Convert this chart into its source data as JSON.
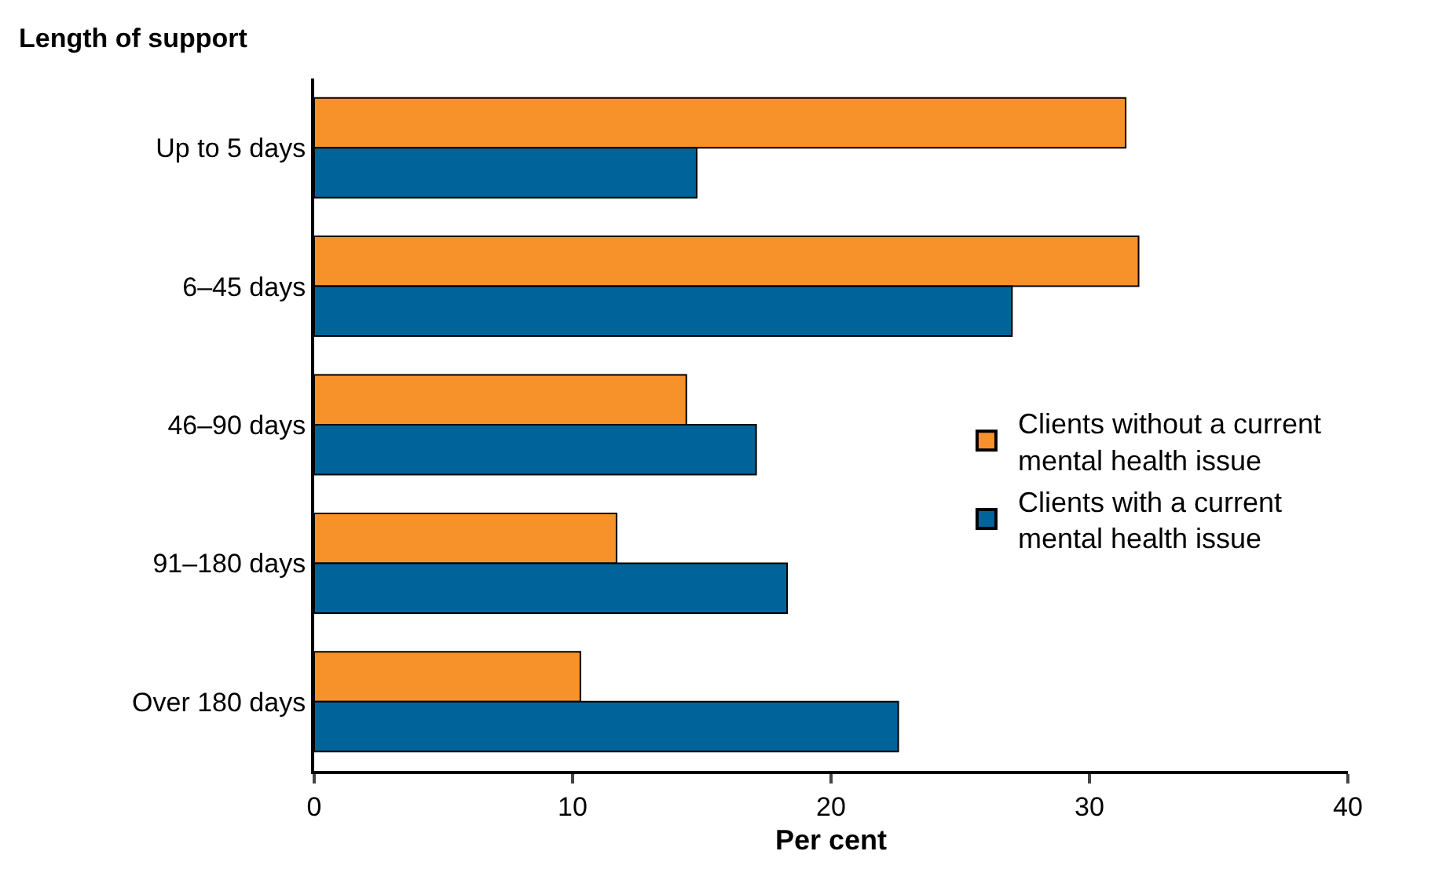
{
  "chart_data": {
    "type": "bar",
    "orientation": "horizontal",
    "ylabel": "Length of support",
    "xlabel": "Per cent",
    "categories": [
      "Up to 5 days",
      "6–45 days",
      "46–90 days",
      "91–180 days",
      "Over 180 days"
    ],
    "series": [
      {
        "name": "Clients without a current mental health issue",
        "color": "#f7922a",
        "values": [
          31.4,
          31.9,
          14.4,
          11.7,
          10.3
        ]
      },
      {
        "name": "Clients with a current mental health issue",
        "color": "#00649a",
        "values": [
          14.8,
          27.0,
          17.1,
          18.3,
          22.6
        ]
      }
    ],
    "xlim": [
      0,
      40
    ],
    "xticks": [
      0,
      10,
      20,
      30,
      40
    ],
    "legend": "right"
  }
}
